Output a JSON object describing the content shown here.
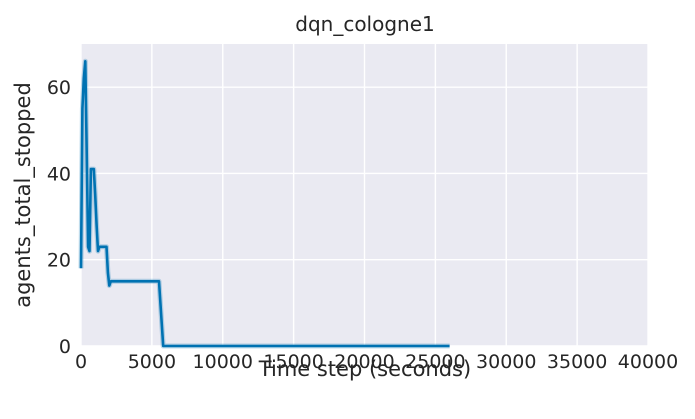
{
  "chart_data": {
    "type": "line",
    "title": "dqn_cologne1",
    "xlabel": "Time step (seconds)",
    "ylabel": "agents_total_stopped",
    "xlim": [
      0,
      40000
    ],
    "ylim": [
      0,
      70
    ],
    "xticks": [
      0,
      5000,
      10000,
      15000,
      20000,
      25000,
      30000,
      35000,
      40000
    ],
    "xtick_labels": [
      "0",
      "5000",
      "10000",
      "15000",
      "20000",
      "25000",
      "30000",
      "35000",
      "40000"
    ],
    "yticks": [
      0,
      20,
      40,
      60
    ],
    "ytick_labels": [
      "0",
      "20",
      "40",
      "60"
    ],
    "grid": true,
    "background": "#EAEAF2",
    "series": [
      {
        "color": "#0072B2",
        "x": [
          0,
          100,
          200,
          300,
          400,
          500,
          600,
          700,
          800,
          900,
          1000,
          1100,
          1200,
          1300,
          1400,
          1500,
          1700,
          1800,
          1900,
          2000,
          2100,
          5400,
          5500,
          5600,
          5700,
          5800,
          6000,
          8000,
          10000,
          15000,
          20000,
          26000
        ],
        "y": [
          18,
          55,
          62,
          66,
          45,
          23,
          22,
          41,
          41,
          41,
          35,
          28,
          22,
          23,
          23,
          23,
          23,
          23,
          17,
          14,
          15,
          15,
          15,
          10,
          5,
          0,
          0,
          0,
          0,
          0,
          0,
          0
        ]
      }
    ]
  }
}
